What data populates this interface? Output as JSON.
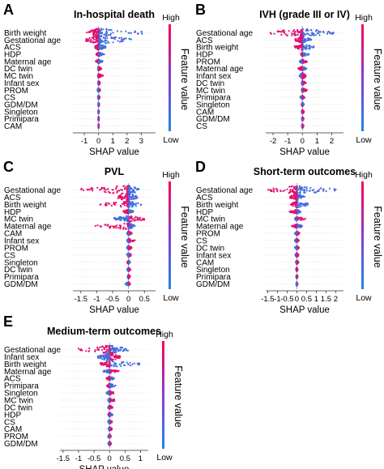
{
  "figure": {
    "colors": {
      "high": "#ff0052",
      "low": "#1e88e5",
      "zero_line": "#999999",
      "axis": "#333333"
    }
  },
  "chart_data": [
    {
      "letter": "A",
      "type": "scatter",
      "title": "In-hospital death",
      "xlabel": "SHAP value",
      "colorbar_label": "Feature value",
      "colorbar_high": "High",
      "colorbar_low": "Low",
      "xlim": [
        -1.8,
        4.0
      ],
      "xticks": [
        -1,
        0,
        1,
        2,
        3
      ],
      "xtick_labels": [
        "-1",
        "0",
        "1",
        "2",
        "3"
      ],
      "features": [
        {
          "name": "Birth weight",
          "min": -0.9,
          "max": 3.3,
          "high_side": "left",
          "spread": 3
        },
        {
          "name": "Gestational age",
          "min": -0.9,
          "max": 2.4,
          "high_side": "left",
          "spread": 3
        },
        {
          "name": "ACS",
          "min": -0.25,
          "max": 0.5,
          "high_side": "left",
          "spread": 2
        },
        {
          "name": "HDP",
          "min": -0.15,
          "max": 0.4,
          "high_side": "left",
          "spread": 1
        },
        {
          "name": "Maternal age",
          "min": -0.2,
          "max": 0.3,
          "high_side": "left",
          "spread": 1
        },
        {
          "name": "DC twin",
          "min": -0.05,
          "max": 0.2,
          "high_side": "right",
          "spread": 1
        },
        {
          "name": "MC twin",
          "min": -0.05,
          "max": 0.35,
          "high_side": "right",
          "spread": 1
        },
        {
          "name": "Infant sex",
          "min": -0.05,
          "max": 0.12,
          "high_side": "right",
          "spread": 1
        },
        {
          "name": "PROM",
          "min": -0.08,
          "max": 0.12,
          "high_side": "right",
          "spread": 1
        },
        {
          "name": "CS",
          "min": -0.05,
          "max": 0.08,
          "high_side": "right",
          "spread": 1
        },
        {
          "name": "GDM/DM",
          "min": -0.03,
          "max": 0.05,
          "high_side": "right",
          "spread": 1
        },
        {
          "name": "Singleton",
          "min": -0.03,
          "max": 0.04,
          "high_side": "left",
          "spread": 1
        },
        {
          "name": "Primipara",
          "min": -0.03,
          "max": 0.03,
          "high_side": "right",
          "spread": 1
        },
        {
          "name": "CAM",
          "min": -0.02,
          "max": 0.03,
          "high_side": "right",
          "spread": 1
        }
      ]
    },
    {
      "letter": "B",
      "type": "scatter",
      "title": "IVH (grade III or IV)",
      "xlabel": "SHAP value",
      "colorbar_label": "Feature value",
      "colorbar_high": "High",
      "colorbar_low": "Low",
      "xlim": [
        -2.5,
        2.8
      ],
      "xticks": [
        -2,
        -1,
        0,
        1,
        2
      ],
      "xtick_labels": [
        "-2",
        "-1",
        "0",
        "1",
        "2"
      ],
      "features": [
        {
          "name": "Gestational age",
          "min": -2.4,
          "max": 2.2,
          "high_side": "left",
          "spread": 3
        },
        {
          "name": "ACS",
          "min": -0.5,
          "max": 0.6,
          "high_side": "left",
          "spread": 2
        },
        {
          "name": "Birth weight",
          "min": -0.6,
          "max": 0.8,
          "high_side": "left",
          "spread": 2
        },
        {
          "name": "HDP",
          "min": -0.1,
          "max": 0.45,
          "high_side": "left",
          "spread": 1
        },
        {
          "name": "PROM",
          "min": -0.2,
          "max": 0.3,
          "high_side": "right",
          "spread": 1
        },
        {
          "name": "Maternal age",
          "min": -0.3,
          "max": 0.3,
          "high_side": "left",
          "spread": 1
        },
        {
          "name": "Infant sex",
          "min": -0.2,
          "max": 0.25,
          "high_side": "right",
          "spread": 2
        },
        {
          "name": "DC twin",
          "min": -0.05,
          "max": 0.25,
          "high_side": "right",
          "spread": 1
        },
        {
          "name": "MC twin",
          "min": -0.05,
          "max": 0.3,
          "high_side": "right",
          "spread": 1
        },
        {
          "name": "Primipara",
          "min": -0.15,
          "max": 0.15,
          "high_side": "right",
          "spread": 1
        },
        {
          "name": "Singleton",
          "min": -0.05,
          "max": 0.1,
          "high_side": "left",
          "spread": 1
        },
        {
          "name": "CAM",
          "min": -0.05,
          "max": 0.1,
          "high_side": "right",
          "spread": 1
        },
        {
          "name": "GDM/DM",
          "min": -0.05,
          "max": 0.08,
          "high_side": "right",
          "spread": 1
        },
        {
          "name": "CS",
          "min": -0.05,
          "max": 0.08,
          "high_side": "right",
          "spread": 1
        }
      ]
    },
    {
      "letter": "C",
      "type": "scatter",
      "title": "PVL",
      "xlabel": "SHAP value",
      "colorbar_label": "Feature value",
      "colorbar_high": "High",
      "colorbar_low": "Low",
      "xlim": [
        -1.75,
        0.85
      ],
      "xticks": [
        -1.5,
        -1,
        -0.5,
        0,
        0.5
      ],
      "xtick_labels": [
        "-1.5",
        "-1",
        "-0.5",
        "0",
        "0.5"
      ],
      "features": [
        {
          "name": "Gestational age",
          "min": -1.6,
          "max": 0.35,
          "high_side": "left",
          "spread": 3
        },
        {
          "name": "ACS",
          "min": -0.35,
          "max": 0.3,
          "high_side": "left",
          "spread": 3
        },
        {
          "name": "Birth weight",
          "min": -0.9,
          "max": 0.4,
          "high_side": "left",
          "spread": 2
        },
        {
          "name": "HDP",
          "min": -0.2,
          "max": 0.15,
          "high_side": "left",
          "spread": 1
        },
        {
          "name": "MC twin",
          "min": -0.5,
          "max": 0.55,
          "high_side": "right",
          "spread": 2
        },
        {
          "name": "Maternal age",
          "min": -1.05,
          "max": 0.2,
          "high_side": "left",
          "spread": 2
        },
        {
          "name": "CAM",
          "min": -0.05,
          "max": 0.1,
          "high_side": "right",
          "spread": 1
        },
        {
          "name": "Infant sex",
          "min": -0.05,
          "max": 0.2,
          "high_side": "right",
          "spread": 1
        },
        {
          "name": "PROM",
          "min": -0.05,
          "max": 0.1,
          "high_side": "right",
          "spread": 1
        },
        {
          "name": "CS",
          "min": -0.05,
          "max": 0.08,
          "high_side": "right",
          "spread": 1
        },
        {
          "name": "Singleton",
          "min": -0.04,
          "max": 0.05,
          "high_side": "left",
          "spread": 1
        },
        {
          "name": "DC twin",
          "min": -0.04,
          "max": 0.06,
          "high_side": "right",
          "spread": 1
        },
        {
          "name": "Primipara",
          "min": -0.03,
          "max": 0.05,
          "high_side": "right",
          "spread": 1
        },
        {
          "name": "GDM/DM",
          "min": -0.1,
          "max": 0.05,
          "high_side": "right",
          "spread": 1
        }
      ]
    },
    {
      "letter": "D",
      "type": "scatter",
      "title": "Short-term outcomes",
      "xlabel": "SHAP value",
      "colorbar_label": "Feature value",
      "colorbar_high": "High",
      "colorbar_low": "Low",
      "xlim": [
        -1.6,
        2.4
      ],
      "xticks": [
        -1.5,
        -1,
        -0.5,
        0,
        0.5,
        1,
        1.5,
        2
      ],
      "xtick_labels": [
        "-1.5",
        "-1",
        "-0.5",
        "0",
        "0.5",
        "1",
        "1.5",
        "2"
      ],
      "features": [
        {
          "name": "Gestational age",
          "min": -1.5,
          "max": 2.0,
          "high_side": "left",
          "spread": 3
        },
        {
          "name": "ACS",
          "min": -0.35,
          "max": 0.4,
          "high_side": "left",
          "spread": 2
        },
        {
          "name": "Birth weight",
          "min": -0.3,
          "max": 0.6,
          "high_side": "left",
          "spread": 2
        },
        {
          "name": "HDP",
          "min": -0.4,
          "max": 0.2,
          "high_side": "left",
          "spread": 1
        },
        {
          "name": "MC twin",
          "min": -0.1,
          "max": 0.45,
          "high_side": "right",
          "spread": 1
        },
        {
          "name": "Maternal age",
          "min": -0.3,
          "max": 0.3,
          "high_side": "left",
          "spread": 1
        },
        {
          "name": "PROM",
          "min": -0.1,
          "max": 0.15,
          "high_side": "right",
          "spread": 1
        },
        {
          "name": "CS",
          "min": -0.1,
          "max": 0.1,
          "high_side": "right",
          "spread": 1
        },
        {
          "name": "DC twin",
          "min": -0.1,
          "max": 0.12,
          "high_side": "right",
          "spread": 1
        },
        {
          "name": "Infant sex",
          "min": -0.08,
          "max": 0.1,
          "high_side": "right",
          "spread": 1
        },
        {
          "name": "CAM",
          "min": -0.05,
          "max": 0.08,
          "high_side": "right",
          "spread": 1
        },
        {
          "name": "Singleton",
          "min": -0.04,
          "max": 0.05,
          "high_side": "left",
          "spread": 1
        },
        {
          "name": "Primipara",
          "min": -0.03,
          "max": 0.04,
          "high_side": "right",
          "spread": 1
        },
        {
          "name": "GDM/DM",
          "min": -0.03,
          "max": 0.04,
          "high_side": "right",
          "spread": 1
        }
      ]
    },
    {
      "letter": "E",
      "type": "scatter",
      "title": "Medium-term outcomes",
      "xlabel": "SHAP value",
      "colorbar_label": "Feature value",
      "colorbar_high": "High",
      "colorbar_low": "Low",
      "xlim": [
        -1.6,
        1.25
      ],
      "xticks": [
        -1.5,
        -1,
        -0.5,
        0,
        0.5,
        1
      ],
      "xtick_labels": [
        "-1.5",
        "-1",
        "-0.5",
        "0",
        "0.5",
        "1"
      ],
      "features": [
        {
          "name": "Gestational age",
          "min": -1.0,
          "max": 0.6,
          "high_side": "left",
          "spread": 3
        },
        {
          "name": "Infant sex",
          "min": -0.4,
          "max": 0.35,
          "high_side": "right",
          "spread": 3
        },
        {
          "name": "Birth weight",
          "min": -0.3,
          "max": 1.0,
          "high_side": "left",
          "spread": 2
        },
        {
          "name": "Maternal age",
          "min": -0.2,
          "max": 0.3,
          "high_side": "right",
          "spread": 1
        },
        {
          "name": "ACS",
          "min": -0.1,
          "max": 0.15,
          "high_side": "left",
          "spread": 1
        },
        {
          "name": "Primipara",
          "min": -0.1,
          "max": 0.2,
          "high_side": "left",
          "spread": 1
        },
        {
          "name": "Singleton",
          "min": -0.1,
          "max": 0.15,
          "high_side": "right",
          "spread": 1
        },
        {
          "name": "MC twin",
          "min": -0.05,
          "max": 0.2,
          "high_side": "right",
          "spread": 1
        },
        {
          "name": "DC twin",
          "min": -0.05,
          "max": 0.1,
          "high_side": "right",
          "spread": 1
        },
        {
          "name": "HDP",
          "min": -0.05,
          "max": 0.1,
          "high_side": "left",
          "spread": 1
        },
        {
          "name": "CS",
          "min": -0.05,
          "max": 0.08,
          "high_side": "right",
          "spread": 1
        },
        {
          "name": "CAM",
          "min": -0.05,
          "max": 0.08,
          "high_side": "right",
          "spread": 1
        },
        {
          "name": "PROM",
          "min": -0.05,
          "max": 0.06,
          "high_side": "right",
          "spread": 1
        },
        {
          "name": "GDM/DM",
          "min": -0.04,
          "max": 0.05,
          "high_side": "right",
          "spread": 1
        }
      ]
    }
  ]
}
